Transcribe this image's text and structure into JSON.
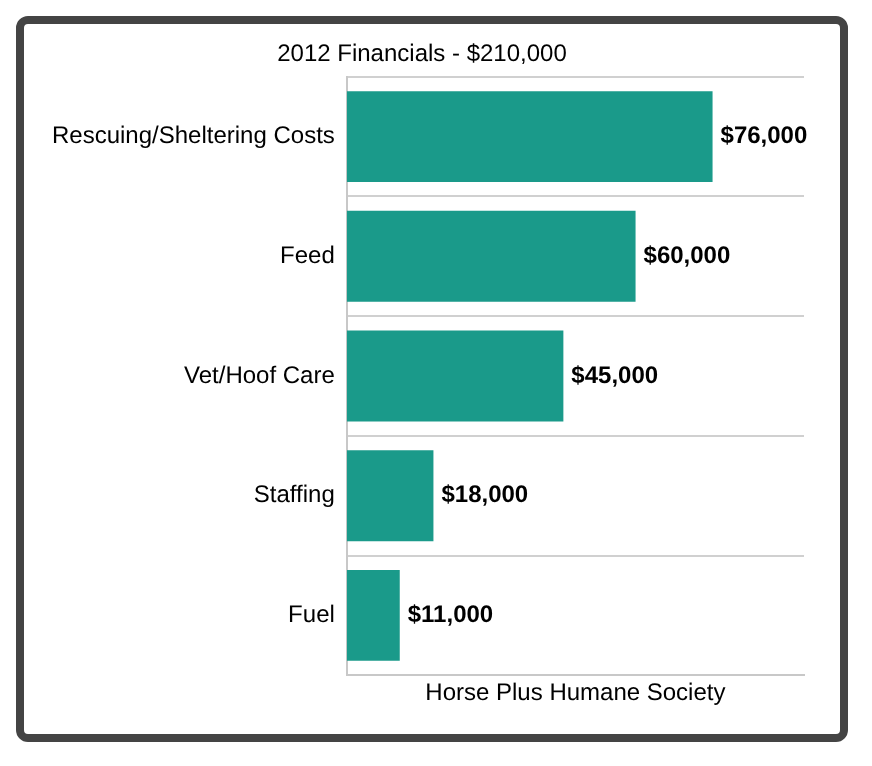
{
  "chart_data": {
    "type": "bar",
    "orientation": "horizontal",
    "title": "2012 Financials - $210,000",
    "xlabel": "Horse Plus Humane Society",
    "categories": [
      "Rescuing/Sheltering Costs",
      "Feed",
      "Vet/Hoof Care",
      "Staffing",
      "Fuel"
    ],
    "values": [
      76000,
      60000,
      45000,
      18000,
      11000
    ],
    "color": "#1a9a8a",
    "value_labels": [
      "$76,000",
      "$60,000",
      "$45,000",
      "$18,000",
      "$11,000"
    ],
    "tick_labels": "y",
    "grid": "y",
    "legend": false
  }
}
